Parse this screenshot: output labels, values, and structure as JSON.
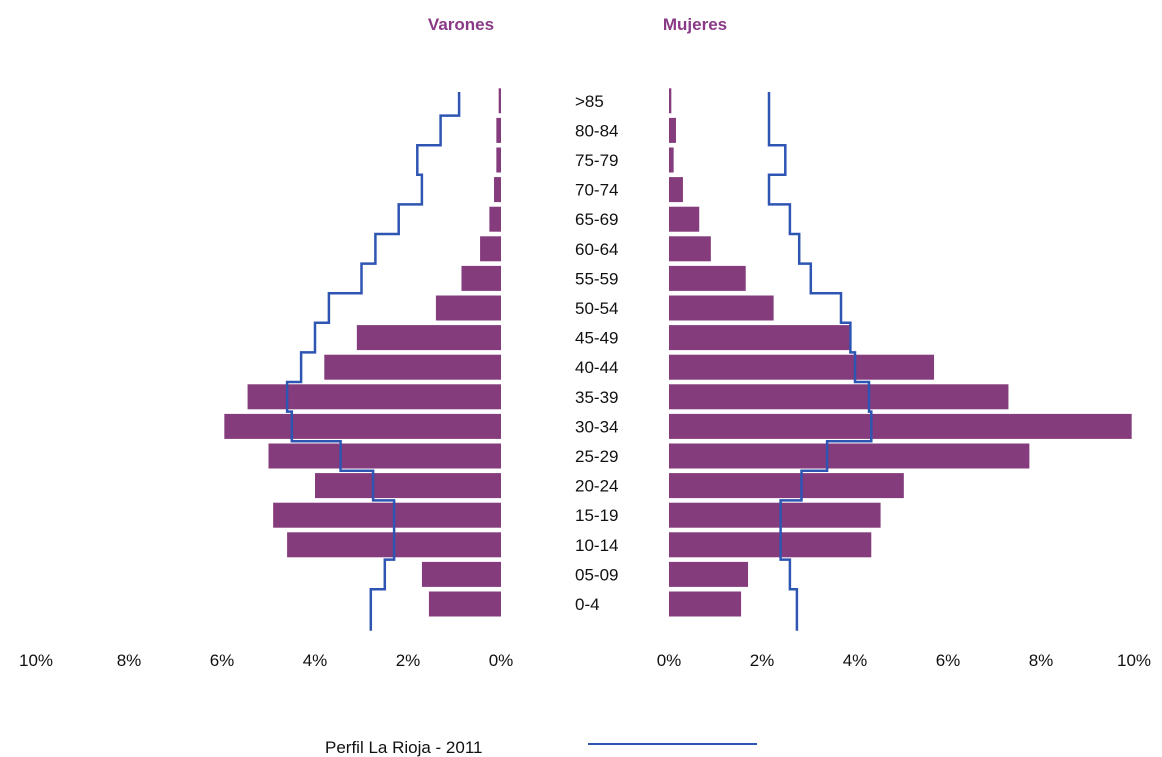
{
  "chart_data": {
    "type": "bar",
    "subtype": "population-pyramid",
    "panels": [
      {
        "name": "Varones",
        "side": "left"
      },
      {
        "name": "Mujeres",
        "side": "right"
      }
    ],
    "categories": [
      ">85",
      "80-84",
      "75-79",
      "70-74",
      "65-69",
      "60-64",
      "55-59",
      "50-54",
      "45-49",
      "40-44",
      "35-39",
      "30-34",
      "25-29",
      "20-24",
      "15-19",
      "10-14",
      "05-09",
      "0-4"
    ],
    "series": [
      {
        "name": "",
        "kind": "bar",
        "color": "#843c7c",
        "varones": [
          0.05,
          0.1,
          0.1,
          0.15,
          0.25,
          0.45,
          0.85,
          1.4,
          3.1,
          3.8,
          5.45,
          5.95,
          5.0,
          4.0,
          4.9,
          4.6,
          1.7,
          1.55
        ],
        "mujeres": [
          0.05,
          0.15,
          0.1,
          0.3,
          0.65,
          0.9,
          1.65,
          2.25,
          3.9,
          5.7,
          7.3,
          9.95,
          7.75,
          5.05,
          4.55,
          4.35,
          1.7,
          1.55
        ]
      },
      {
        "name": "Perfil La Rioja - 2011",
        "kind": "line",
        "color": "#2f55b3",
        "varones": [
          0.9,
          1.3,
          1.8,
          1.7,
          2.2,
          2.7,
          3.0,
          3.7,
          4.0,
          4.3,
          4.6,
          4.5,
          3.45,
          2.75,
          2.3,
          2.3,
          2.5,
          2.8
        ],
        "mujeres": [
          2.15,
          2.15,
          2.5,
          2.15,
          2.6,
          2.8,
          3.05,
          3.7,
          3.9,
          4.0,
          4.3,
          4.35,
          3.4,
          2.85,
          2.4,
          2.4,
          2.6,
          2.75
        ]
      }
    ],
    "xaxis": {
      "range": [
        0,
        10
      ],
      "ticks_left": [
        "10%",
        "8%",
        "6%",
        "4%",
        "2%",
        "0%"
      ],
      "ticks_right": [
        "0%",
        "2%",
        "4%",
        "6%",
        "8%",
        "10%"
      ]
    },
    "grid": false,
    "legend": {
      "placement": "bottom-center",
      "entries": [
        "Perfil La Rioja - 2011"
      ]
    }
  },
  "colors": {
    "bar": "#843c7c",
    "line": "#2f55b3",
    "title": "#8a3a86"
  }
}
